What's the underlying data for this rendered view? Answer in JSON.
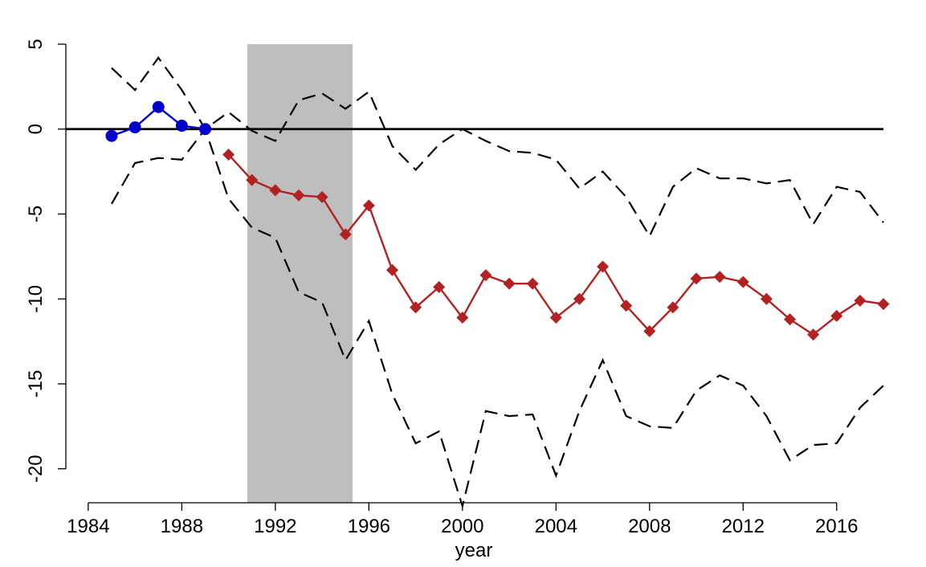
{
  "chart_data": {
    "type": "line",
    "xlabel": "year",
    "ylabel": "",
    "xlim": [
      1985,
      2018
    ],
    "ylim": [
      -22,
      5
    ],
    "x_ticks": [
      1984,
      1988,
      1992,
      1996,
      2000,
      2004,
      2008,
      2012,
      2016
    ],
    "y_ticks": [
      5,
      0,
      -5,
      -10,
      -15,
      -20
    ],
    "reference_line": 0,
    "shaded_band": {
      "x_start": 1990.8,
      "x_end": 1995.3,
      "color": "#bebebe"
    },
    "series": [
      {
        "role": "pre-period",
        "color": "#0000c8",
        "marker": "circle",
        "line_style": "solid",
        "x": [
          1985,
          1986,
          1987,
          1988,
          1989
        ],
        "y": [
          -0.4,
          0.1,
          1.3,
          0.2,
          0.0
        ]
      },
      {
        "role": "post-period",
        "color": "#b22222",
        "marker": "diamond",
        "line_style": "solid",
        "x": [
          1990,
          1991,
          1992,
          1993,
          1994,
          1995,
          1996,
          1997,
          1998,
          1999,
          2000,
          2001,
          2002,
          2003,
          2004,
          2005,
          2006,
          2007,
          2008,
          2009,
          2010,
          2011,
          2012,
          2013,
          2014,
          2015,
          2016,
          2017,
          2018
        ],
        "y": [
          -1.5,
          -3.0,
          -3.6,
          -3.9,
          -4.0,
          -6.2,
          -4.5,
          -8.3,
          -10.5,
          -9.3,
          -11.1,
          -8.6,
          -9.1,
          -9.1,
          -11.1,
          -10.0,
          -8.1,
          -10.4,
          -11.9,
          -10.5,
          -8.8,
          -8.7,
          -9.0,
          -10.0,
          -11.2,
          -12.1,
          -11.0,
          -10.1,
          -10.3
        ]
      },
      {
        "role": "upper-bound",
        "color": "#000000",
        "line_style": "dashed",
        "x": [
          1985,
          1986,
          1987,
          1988,
          1989,
          1990,
          1991,
          1992,
          1993,
          1994,
          1995,
          1996,
          1997,
          1998,
          1999,
          2000,
          2001,
          2002,
          2003,
          2004,
          2005,
          2006,
          2007,
          2008,
          2009,
          2010,
          2011,
          2012,
          2013,
          2014,
          2015,
          2016,
          2017,
          2018
        ],
        "y": [
          3.6,
          2.3,
          4.2,
          2.3,
          0.0,
          1.0,
          -0.1,
          -0.7,
          1.7,
          2.1,
          1.2,
          2.2,
          -1.0,
          -2.4,
          -0.9,
          0.0,
          -0.7,
          -1.3,
          -1.4,
          -1.8,
          -3.5,
          -2.5,
          -4.0,
          -6.3,
          -3.4,
          -2.3,
          -2.9,
          -2.9,
          -3.2,
          -3.0,
          -5.6,
          -3.4,
          -3.7,
          -5.5
        ]
      },
      {
        "role": "lower-bound",
        "color": "#000000",
        "line_style": "dashed",
        "x": [
          1985,
          1986,
          1987,
          1988,
          1989,
          1990,
          1991,
          1992,
          1993,
          1994,
          1995,
          1996,
          1997,
          1998,
          1999,
          2000,
          2001,
          2002,
          2003,
          2004,
          2005,
          2006,
          2007,
          2008,
          2009,
          2010,
          2011,
          2012,
          2013,
          2014,
          2015,
          2016,
          2017,
          2018
        ],
        "y": [
          -4.4,
          -2.0,
          -1.7,
          -1.8,
          0.0,
          -4.1,
          -5.8,
          -6.4,
          -9.6,
          -10.2,
          -13.6,
          -11.3,
          -15.6,
          -18.5,
          -17.8,
          -22.2,
          -16.6,
          -16.9,
          -16.8,
          -20.4,
          -16.6,
          -13.6,
          -16.9,
          -17.5,
          -17.6,
          -15.4,
          -14.5,
          -15.1,
          -16.9,
          -19.5,
          -18.6,
          -18.5,
          -16.4,
          -15.1
        ]
      }
    ]
  }
}
